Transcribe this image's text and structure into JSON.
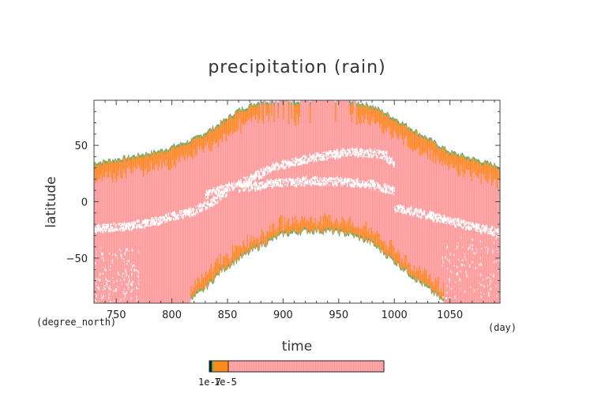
{
  "chart_data": {
    "type": "heatmap",
    "title": "precipitation (rain)",
    "xlabel": "time",
    "ylabel": "latitude",
    "x_unit": "(day)",
    "y_unit": "(degree_north)",
    "xlim": [
      730,
      1095
    ],
    "ylim": [
      -90,
      90
    ],
    "x_ticks": [
      750,
      800,
      850,
      900,
      950,
      1000,
      1050
    ],
    "y_ticks": [
      -50,
      0,
      50
    ],
    "grid": false,
    "series": [
      {
        "band": "northern-edge",
        "x": [
          730,
          760,
          790,
          820,
          840,
          860,
          880,
          900,
          920,
          940,
          960,
          980,
          1000,
          1020,
          1050,
          1080,
          1095
        ],
        "y": [
          35,
          40,
          46,
          56,
          68,
          82,
          90,
          90,
          90,
          90,
          90,
          86,
          75,
          63,
          45,
          36,
          32
        ]
      },
      {
        "band": "southern-edge",
        "x": [
          815,
          830,
          845,
          860,
          880,
          900,
          920,
          940,
          960,
          980,
          995,
          1010,
          1030,
          1045
        ],
        "y": [
          -90,
          -78,
          -62,
          -52,
          -40,
          -30,
          -27,
          -27,
          -30,
          -38,
          -50,
          -62,
          -78,
          -90
        ]
      },
      {
        "band": "gap-north",
        "x": [
          830,
          860,
          890,
          920,
          960,
          990,
          1000
        ],
        "y": [
          6,
          16,
          30,
          38,
          44,
          42,
          32
        ]
      },
      {
        "band": "gap-equatorial",
        "x": [
          860,
          890,
          920,
          950,
          980,
          1000
        ],
        "y": [
          12,
          16,
          18,
          18,
          15,
          9
        ]
      },
      {
        "band": "gap-south",
        "x": [
          730,
          760,
          790,
          820,
          840,
          850
        ],
        "y": [
          -24,
          -22,
          -16,
          -8,
          2,
          10
        ]
      },
      {
        "band": "gap-south-late",
        "x": [
          1000,
          1030,
          1060,
          1095
        ],
        "y": [
          -5,
          -12,
          -20,
          -28
        ]
      }
    ],
    "colorbar": {
      "labels": [
        "1e-7",
        "1e-5"
      ],
      "colors": [
        "#1a1a1a",
        "#2aa3a3",
        "#3fbf3f",
        "#ff8c1a",
        "#ff9fa0"
      ]
    }
  },
  "colors": {
    "background": "#ffffff",
    "rain_fill": "#ffa7a8",
    "rain_stripe": "#ff9a9b",
    "edge_orange": "#ff8c1a",
    "edge_green": "#3ccf3c",
    "edge_teal": "#2aa3a3"
  }
}
